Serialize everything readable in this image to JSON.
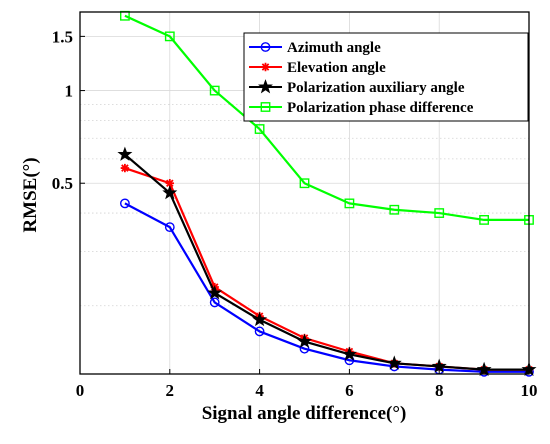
{
  "chart_data": {
    "type": "line",
    "xlabel": "Signal angle difference(°)",
    "ylabel": "RMSE(°)",
    "xlim": [
      0,
      10
    ],
    "ylim": [
      0.12,
      1.8
    ],
    "y_scale": "log",
    "grid": true,
    "legend_position": "top-right",
    "x_ticks": [
      0,
      2,
      4,
      6,
      8,
      10
    ],
    "x_tick_labels": [
      "0",
      "2",
      "4",
      "6",
      "8",
      "10"
    ],
    "y_ticks": [
      0.5,
      1,
      1.5
    ],
    "y_tick_labels": [
      "0.5",
      "1",
      "1.5"
    ],
    "x": [
      1,
      2,
      3,
      4,
      5,
      6,
      7,
      8,
      9,
      10
    ],
    "series": [
      {
        "name": "Azimuth angle",
        "color": "#0000ff",
        "marker": "circle",
        "values": [
          0.43,
          0.36,
          0.205,
          0.165,
          0.145,
          0.133,
          0.127,
          0.124,
          0.122,
          0.122
        ]
      },
      {
        "name": "Elevation angle",
        "color": "#ff0000",
        "marker": "asterisk",
        "values": [
          0.56,
          0.5,
          0.23,
          0.185,
          0.157,
          0.142,
          0.13,
          0.127,
          0.124,
          0.124
        ]
      },
      {
        "name": "Polarization auxiliary angle",
        "color": "#000000",
        "marker": "star",
        "values": [
          0.62,
          0.465,
          0.22,
          0.18,
          0.153,
          0.139,
          0.13,
          0.127,
          0.124,
          0.124
        ]
      },
      {
        "name": "Polarization phase difference",
        "color": "#00ff00",
        "marker": "square",
        "values": [
          1.75,
          1.5,
          1.0,
          0.75,
          0.5,
          0.43,
          0.41,
          0.4,
          0.38,
          0.38
        ]
      }
    ]
  }
}
